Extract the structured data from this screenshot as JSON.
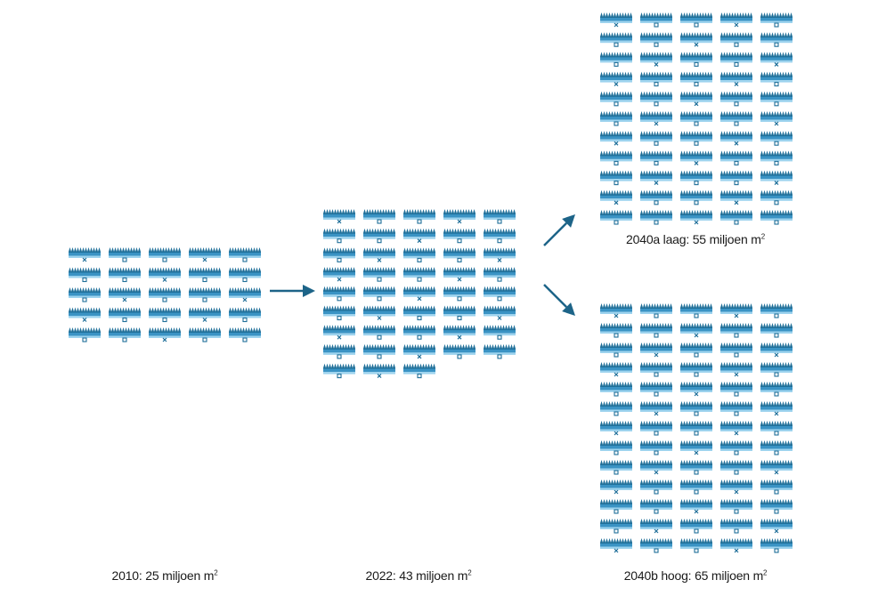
{
  "colors": {
    "dark": "#1f6f99",
    "mid": "#3a93c4",
    "light": "#9dd3ee",
    "arrow": "#1d6488"
  },
  "icon": {
    "name": "greenhouse-icon"
  },
  "scenarios": [
    {
      "id": "2010",
      "count": 25,
      "label_text": "2010: 25 miljoen m",
      "unit_sup": "2"
    },
    {
      "id": "2022",
      "count": 43,
      "label_text": "2022: 43 miljoen m",
      "unit_sup": "2"
    },
    {
      "id": "2040a",
      "count": 55,
      "label_text": "2040a laag: 55 miljoen m",
      "unit_sup": "2"
    },
    {
      "id": "2040b",
      "count": 65,
      "label_text": "2040b hoog: 65 miljoen m",
      "unit_sup": "2"
    }
  ]
}
